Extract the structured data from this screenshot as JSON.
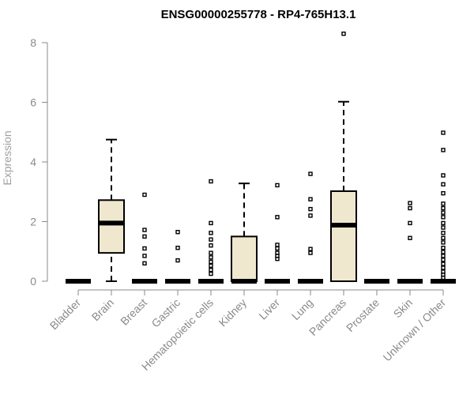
{
  "chart_data": {
    "type": "box",
    "title": "ENSG00000255778 - RP4-765H13.1",
    "xlabel": "",
    "ylabel": "Expression",
    "ylim": [
      0,
      8.3
    ],
    "yticks": [
      0,
      2,
      4,
      6,
      8
    ],
    "box_fill": "#efe8cf",
    "categories": [
      "Bladder",
      "Brain",
      "Breast",
      "Gastric",
      "Hematopoietic cells",
      "Kidney",
      "Liver",
      "Lung",
      "Pancreas",
      "Prostate",
      "Skin",
      "Unknown / Other"
    ],
    "boxes": [
      {
        "q1": 0,
        "median": 0,
        "q3": 0,
        "whisker_low": 0,
        "whisker_high": 0,
        "outliers": []
      },
      {
        "q1": 0.95,
        "median": 1.95,
        "q3": 2.72,
        "whisker_low": 0,
        "whisker_high": 4.75,
        "outliers": []
      },
      {
        "q1": 0,
        "median": 0,
        "q3": 0,
        "whisker_low": 0,
        "whisker_high": 0,
        "outliers": [
          0.6,
          0.85,
          1.1,
          1.5,
          1.72,
          2.9
        ]
      },
      {
        "q1": 0,
        "median": 0,
        "q3": 0,
        "whisker_low": 0,
        "whisker_high": 0,
        "outliers": [
          0.7,
          1.12,
          1.65
        ]
      },
      {
        "q1": 0,
        "median": 0,
        "q3": 0,
        "whisker_low": 0,
        "whisker_high": 0,
        "outliers": [
          0.25,
          0.38,
          0.52,
          0.65,
          0.8,
          0.95,
          1.2,
          1.4,
          1.62,
          1.95,
          3.35
        ]
      },
      {
        "q1": 0,
        "median": 0,
        "q3": 1.5,
        "whisker_low": 0,
        "whisker_high": 3.28,
        "outliers": []
      },
      {
        "q1": 0,
        "median": 0,
        "q3": 0,
        "whisker_low": 0,
        "whisker_high": 0,
        "outliers": [
          0.75,
          0.85,
          0.95,
          1.1,
          1.22,
          2.15,
          3.22
        ]
      },
      {
        "q1": 0,
        "median": 0,
        "q3": 0,
        "whisker_low": 0,
        "whisker_high": 0,
        "outliers": [
          0.95,
          1.08,
          2.2,
          2.42,
          2.75,
          3.6
        ]
      },
      {
        "q1": 0,
        "median": 1.88,
        "q3": 3.02,
        "whisker_low": 0,
        "whisker_high": 6.02,
        "outliers": [
          8.3
        ]
      },
      {
        "q1": 0,
        "median": 0,
        "q3": 0,
        "whisker_low": 0,
        "whisker_high": 0,
        "outliers": []
      },
      {
        "q1": 0,
        "median": 0,
        "q3": 0,
        "whisker_low": 0,
        "whisker_high": 0,
        "outliers": [
          1.45,
          1.95,
          2.45,
          2.62
        ]
      },
      {
        "q1": 0,
        "median": 0,
        "q3": 0,
        "whisker_low": 0,
        "whisker_high": 0,
        "outliers": [
          0.12,
          0.22,
          0.32,
          0.45,
          0.58,
          0.72,
          0.85,
          0.98,
          1.12,
          1.3,
          1.45,
          1.62,
          1.8,
          1.95,
          2.15,
          2.3,
          2.45,
          2.6,
          2.95,
          3.25,
          3.55,
          4.4,
          4.98
        ]
      }
    ]
  }
}
